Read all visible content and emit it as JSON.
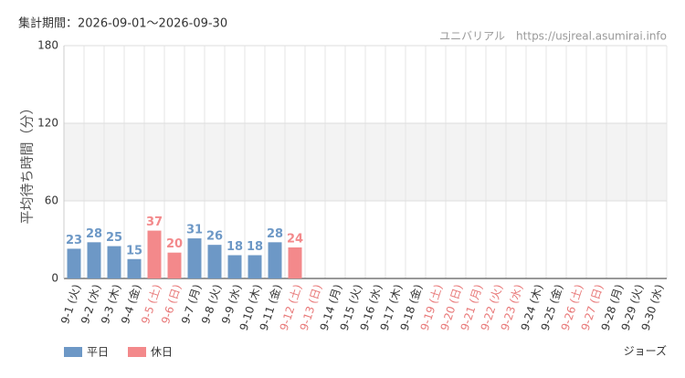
{
  "chart_data": {
    "type": "bar",
    "title": "集計期間：2026-09-01～2026-09-30",
    "source": "ユニバリアル　https://usjreal.asumirai.info",
    "ylabel": "平均待ち時間（分）",
    "footer": "ジョーズ",
    "categories": [
      "9-1 (火)",
      "9-2 (水)",
      "9-3 (木)",
      "9-4 (金)",
      "9-5 (土)",
      "9-6 (日)",
      "9-7 (月)",
      "9-8 (火)",
      "9-9 (水)",
      "9-10 (木)",
      "9-11 (金)",
      "9-12 (土)",
      "9-13 (日)",
      "9-14 (月)",
      "9-15 (火)",
      "9-16 (水)",
      "9-17 (木)",
      "9-18 (金)",
      "9-19 (土)",
      "9-20 (日)",
      "9-21 (月)",
      "9-22 (火)",
      "9-23 (水)",
      "9-24 (木)",
      "9-25 (金)",
      "9-26 (土)",
      "9-27 (日)",
      "9-28 (月)",
      "9-29 (火)",
      "9-30 (水)"
    ],
    "category_colors": [
      "#333",
      "#333",
      "#333",
      "#333",
      "#e87878",
      "#e87878",
      "#333",
      "#333",
      "#333",
      "#333",
      "#333",
      "#e87878",
      "#e87878",
      "#333",
      "#333",
      "#333",
      "#333",
      "#333",
      "#e87878",
      "#e87878",
      "#e87878",
      "#e87878",
      "#e87878",
      "#333",
      "#333",
      "#e87878",
      "#e87878",
      "#333",
      "#333",
      "#333"
    ],
    "series": [
      {
        "name": "平日",
        "color": "#6d98c6",
        "values": [
          23,
          28,
          25,
          15,
          null,
          null,
          31,
          26,
          18,
          18,
          28,
          null,
          null,
          null,
          null,
          null,
          null,
          null,
          null,
          null,
          null,
          null,
          null,
          null,
          null,
          null,
          null,
          null,
          null,
          null
        ]
      },
      {
        "name": "休日",
        "color": "#f3898b",
        "values": [
          null,
          null,
          null,
          null,
          37,
          20,
          null,
          null,
          null,
          null,
          null,
          24,
          null,
          null,
          null,
          null,
          null,
          null,
          null,
          null,
          null,
          null,
          null,
          null,
          null,
          null,
          null,
          null,
          null,
          null
        ]
      }
    ],
    "ylim": [
      0,
      180
    ],
    "yticks": [
      0,
      60,
      120,
      180
    ],
    "band": [
      60,
      120
    ],
    "grid": true
  }
}
